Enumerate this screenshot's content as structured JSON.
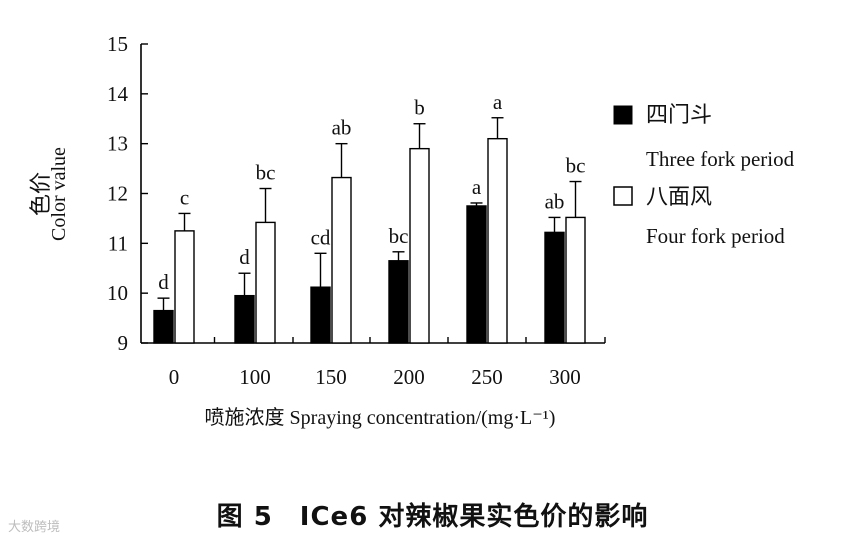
{
  "chart_data": {
    "type": "bar",
    "categories": [
      "0",
      "100",
      "150",
      "200",
      "250",
      "300"
    ],
    "series": [
      {
        "name": "四门斗",
        "name_en": "Three fork period",
        "color": "#000000",
        "values": [
          9.65,
          9.95,
          10.12,
          10.65,
          11.75,
          11.22
        ],
        "errors": [
          0.25,
          0.45,
          0.68,
          0.18,
          0.06,
          0.3
        ],
        "letters": [
          "d",
          "d",
          "cd",
          "bc",
          "a",
          "ab"
        ]
      },
      {
        "name": "八面风",
        "name_en": "Four fork period",
        "color": "#ffffff",
        "values": [
          11.25,
          11.42,
          12.32,
          12.9,
          13.1,
          11.52
        ],
        "errors": [
          0.35,
          0.68,
          0.68,
          0.5,
          0.42,
          0.72
        ],
        "letters": [
          "c",
          "bc",
          "ab",
          "b",
          "a",
          "bc"
        ]
      }
    ],
    "ylim": [
      9,
      15
    ],
    "yticks": [
      "9",
      "10",
      "11",
      "12",
      "13",
      "14",
      "15"
    ],
    "ylabel_cn": "色价",
    "ylabel_en": "Color value",
    "xlabel": "喷施浓度 Spraying concentration/(mg·L⁻¹)",
    "legend_position": "right",
    "grid": false
  },
  "caption": "图 5　ICe6 对辣椒果实色价的影响",
  "watermark": "大数跨境"
}
